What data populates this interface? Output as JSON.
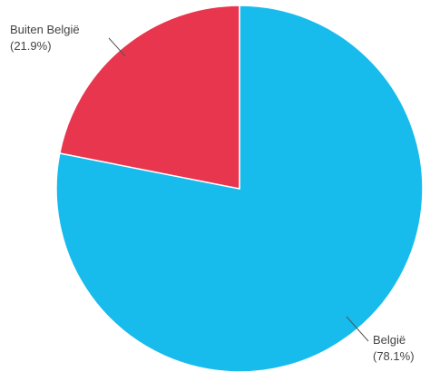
{
  "chart_data": {
    "type": "pie",
    "slices": [
      {
        "label": "België",
        "pct_label": "(78.1%)",
        "value": 78.1,
        "color": "#17BBEC"
      },
      {
        "label": "Buiten België",
        "pct_label": "(21.9%)",
        "value": 21.9,
        "color": "#E8364F"
      }
    ],
    "start_angle_deg": 0,
    "direction": "clockwise",
    "legend": "none",
    "label_style": "outside with leader lines"
  }
}
